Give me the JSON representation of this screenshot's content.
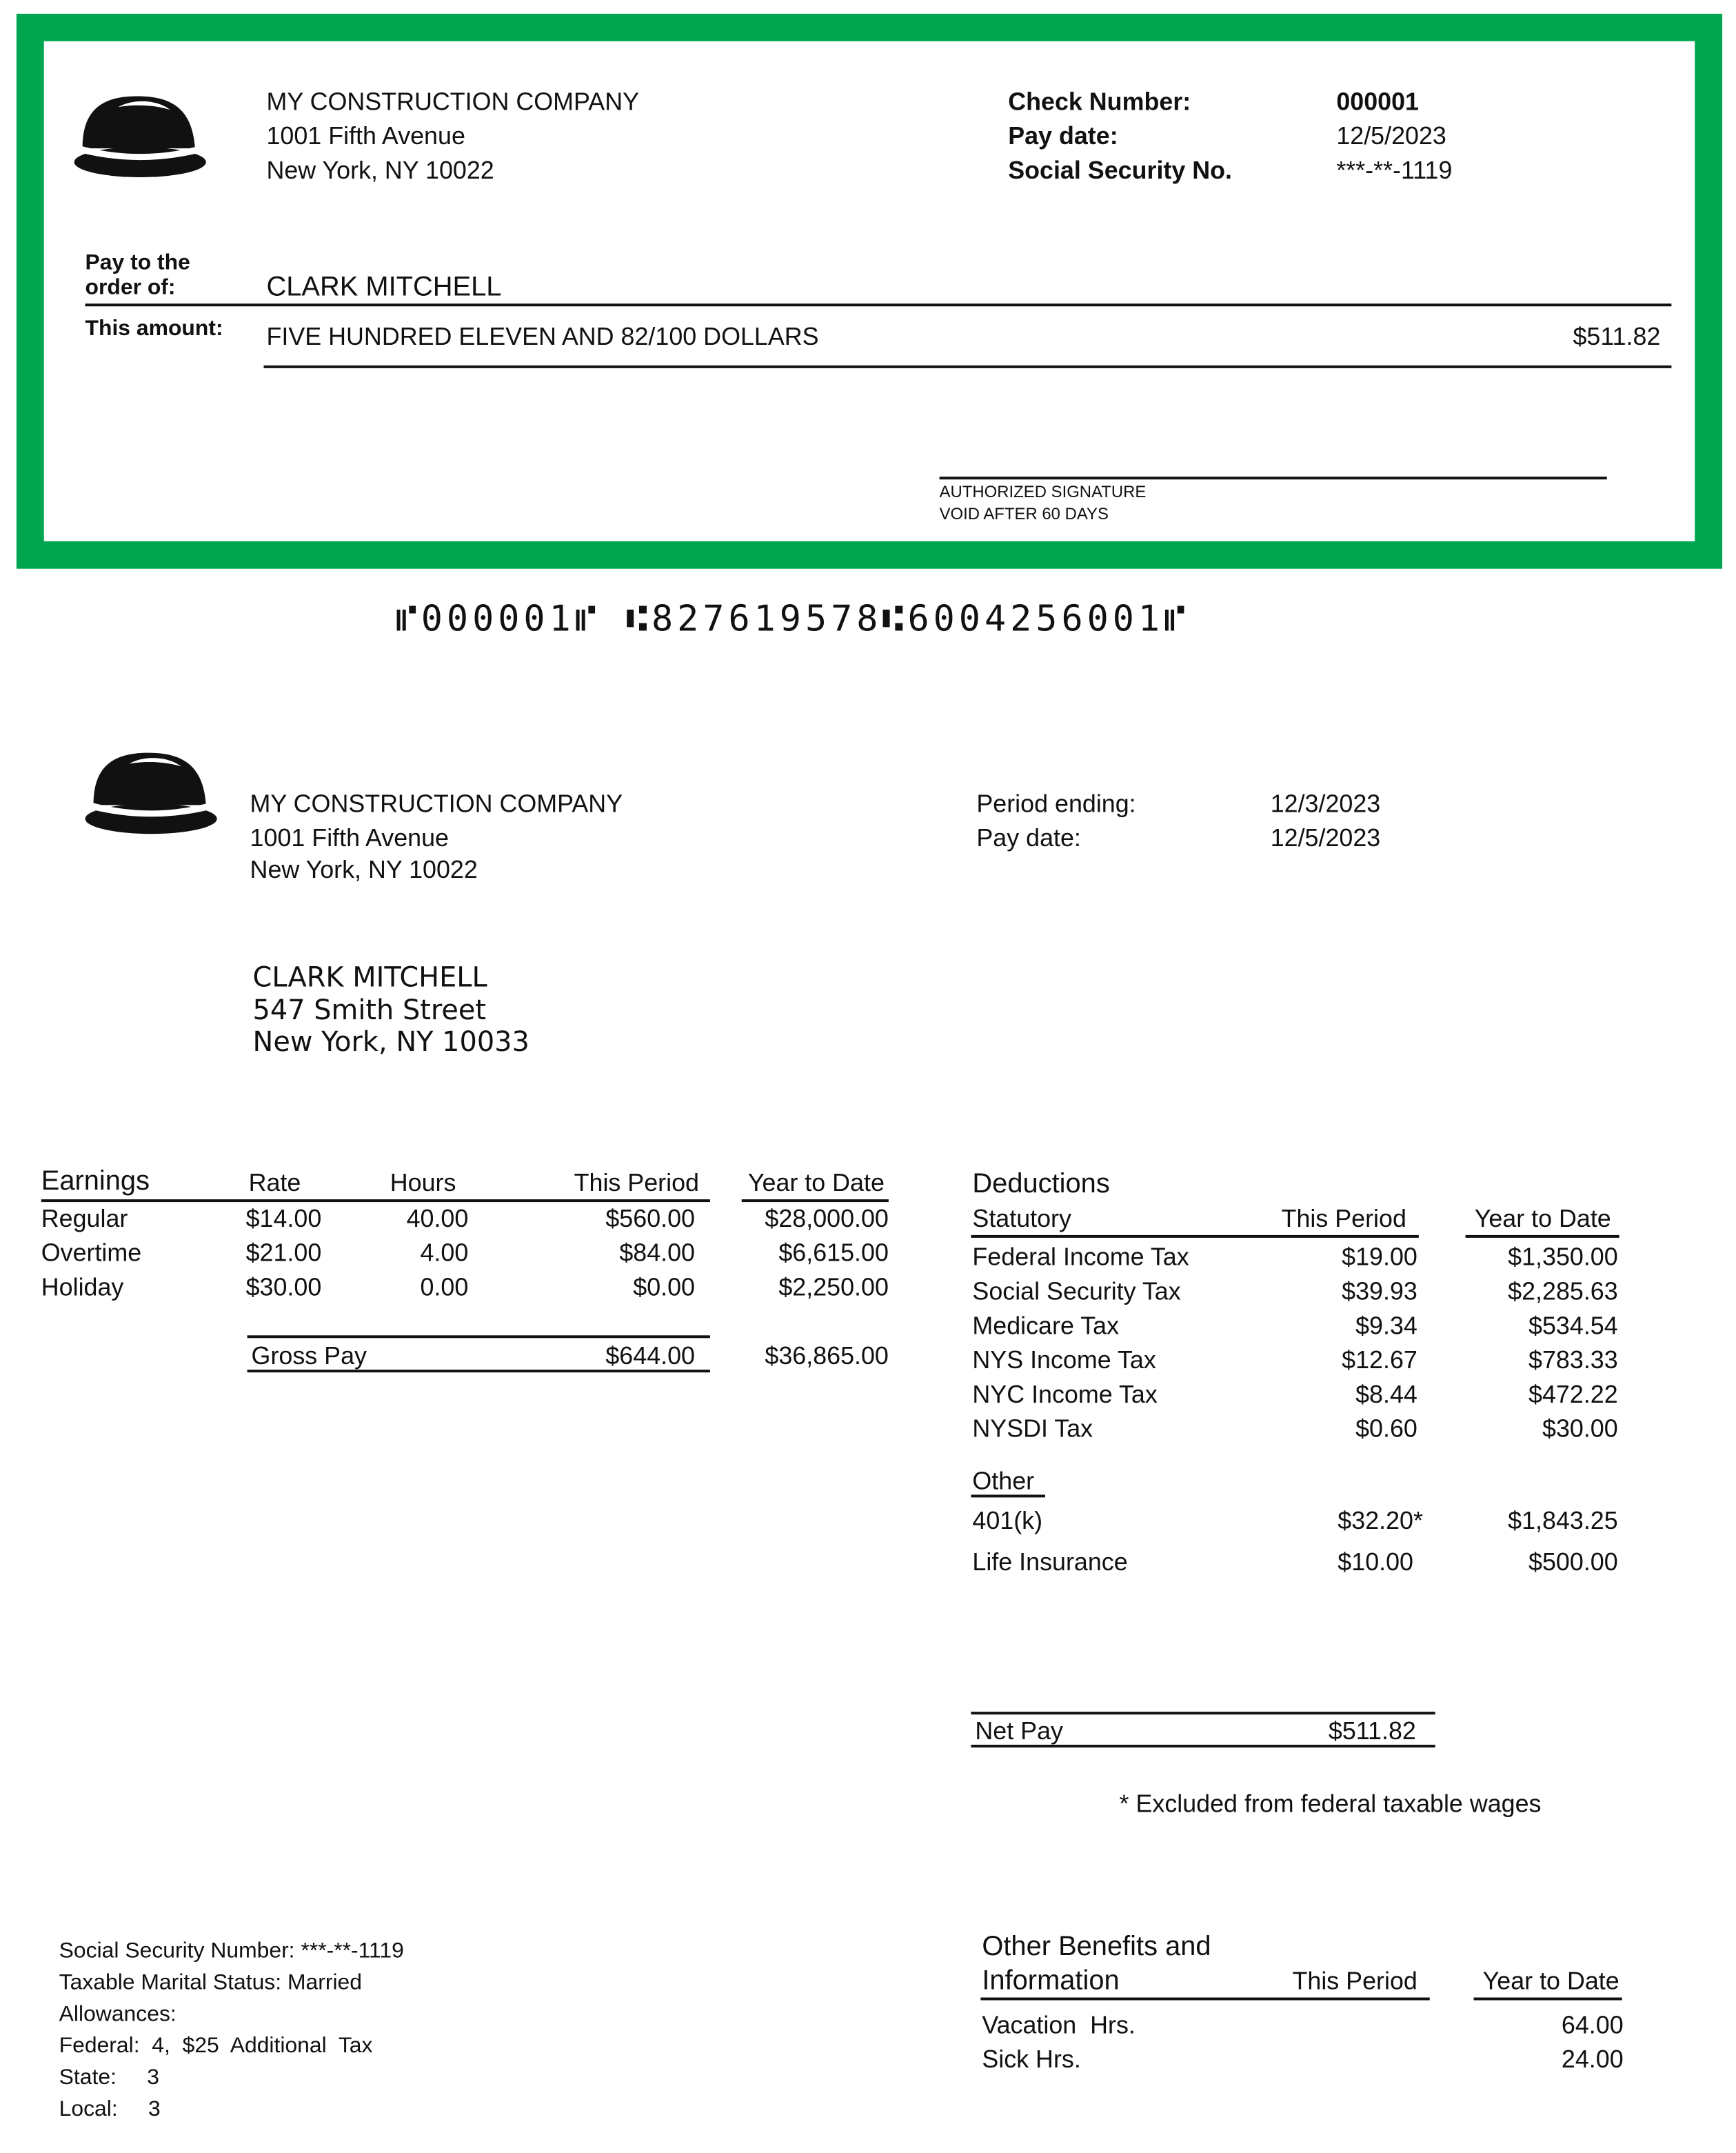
{
  "colors": {
    "check_border": "#00a64f"
  },
  "company": {
    "name": "MY CONSTRUCTION COMPANY",
    "address1": "1001 Fifth Avenue",
    "address2": "New York, NY 10022",
    "logo": "hard-hat-icon"
  },
  "check": {
    "check_number_label": "Check  Number:",
    "check_number": "000001",
    "pay_date_label": "Pay  date:",
    "pay_date": "12/5/2023",
    "ssn_label": "Social  Security  No.",
    "ssn": "***-**-1119",
    "pay_to_label_1": "Pay  to  the",
    "pay_to_label_2": "order of:",
    "payee": "CLARK MITCHELL",
    "amount_label": "This  amount:",
    "amount_words": "FIVE HUNDRED ELEVEN AND 82/100 DOLLARS",
    "amount": "$511.82",
    "signature_label": "AUTHORIZED  SIGNATURE",
    "void_label": "VOID  AFTER  60 DAYS",
    "micr": "⑈000001⑈  ⑆827619578⑆6004256001⑈"
  },
  "stub": {
    "period_ending_label": "Period  ending:",
    "period_ending": "12/3/2023",
    "pay_date_label": "Pay  date:",
    "pay_date": "12/5/2023",
    "employee": {
      "name": "CLARK MITCHELL",
      "address1": "547 Smith Street",
      "address2": "New York, NY 10033"
    },
    "earnings": {
      "headers": [
        "Earnings",
        "Rate",
        "Hours",
        "This Period",
        "Year to Date"
      ],
      "rows": [
        {
          "name": "Regular",
          "rate": "$14.00",
          "hours": "40.00",
          "period": "$560.00",
          "ytd": "$28,000.00"
        },
        {
          "name": "Overtime",
          "rate": "$21.00",
          "hours": "4.00",
          "period": "$84.00",
          "ytd": "$6,615.00"
        },
        {
          "name": "Holiday",
          "rate": "$30.00",
          "hours": "0.00",
          "period": "$0.00",
          "ytd": "$2,250.00"
        }
      ],
      "gross_label": "Gross Pay",
      "gross_period": "$644.00",
      "gross_ytd": "$36,865.00"
    },
    "deductions": {
      "title": "Deductions",
      "statutory_label": "Statutory",
      "period_header": "This Period",
      "ytd_header": "Year to Date",
      "statutory": [
        {
          "name": "Federal Income Tax",
          "period": "$19.00",
          "ytd": "$1,350.00"
        },
        {
          "name": "Social Security Tax",
          "period": "$39.93",
          "ytd": "$2,285.63"
        },
        {
          "name": "Medicare Tax",
          "period": "$9.34",
          "ytd": "$534.54"
        },
        {
          "name": "NYS Income Tax",
          "period": "$12.67",
          "ytd": "$783.33"
        },
        {
          "name": "NYC Income Tax",
          "period": "$8.44",
          "ytd": "$472.22"
        },
        {
          "name": "NYSDI Tax",
          "period": "$0.60",
          "ytd": "$30.00"
        }
      ],
      "other_label": "Other",
      "other": [
        {
          "name": "401(k)",
          "period": "$32.20*",
          "ytd": "$1,843.25"
        },
        {
          "name": "Life Insurance",
          "period": "$10.00",
          "ytd": "$500.00"
        }
      ],
      "net_label": "Net Pay",
      "net_amount": "$511.82",
      "footnote": "* Excluded  from  federal  taxable  wages"
    },
    "employee_info": {
      "ssn": "Social Security Number: ***-**-1119",
      "marital": "Taxable Marital Status:   Married",
      "allowances": "Allowances:",
      "federal": "Federal:  4,  $25  Additional  Tax",
      "state": "State:     3",
      "local": "Local:     3"
    },
    "benefits": {
      "title1": "Other Benefits and",
      "title2": "Information",
      "period_header": "This Period",
      "ytd_header": "Year to Date",
      "rows": [
        {
          "name": "Vacation  Hrs.",
          "ytd": "64.00"
        },
        {
          "name": "Sick Hrs.",
          "ytd": "24.00"
        }
      ]
    }
  }
}
